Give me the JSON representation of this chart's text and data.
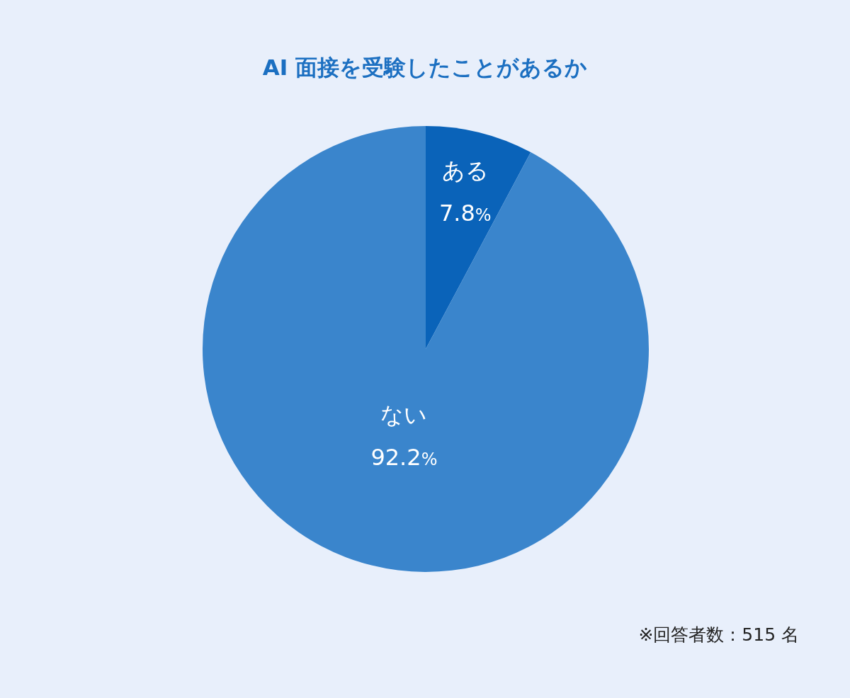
{
  "chart_data": {
    "type": "pie",
    "title": "AI 面接を受験したことがあるか",
    "categories": [
      "ある",
      "ない"
    ],
    "values": [
      7.8,
      92.2
    ],
    "colors": [
      "#0a63b9",
      "#3a85cc"
    ],
    "value_labels": [
      "7.8%",
      "92.2%"
    ],
    "annotations": [
      "※回答者数：515 名"
    ]
  }
}
